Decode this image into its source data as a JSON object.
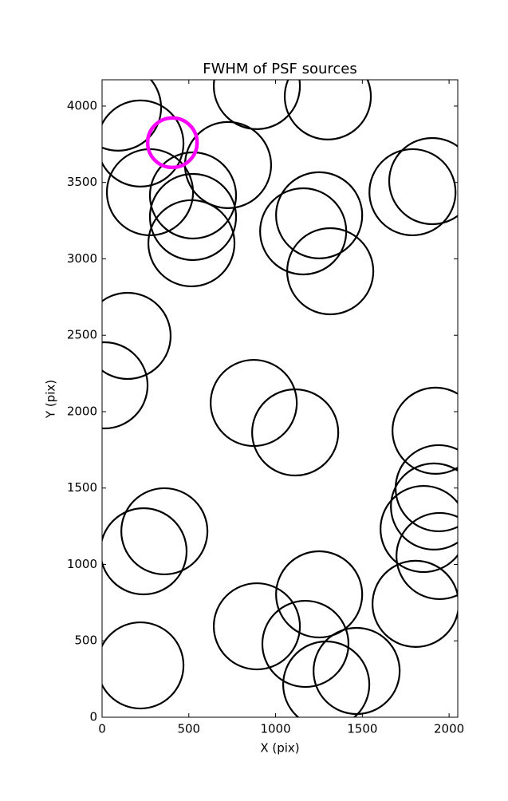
{
  "chart_data": {
    "type": "scatter",
    "title": "FWHM of PSF sources",
    "x_label": "X (pix)",
    "y_label": "Y (pix)",
    "xlim": [
      0,
      2050
    ],
    "ylim": [
      0,
      4172
    ],
    "xticks": [
      0,
      500,
      1000,
      1500,
      2000
    ],
    "yticks": [
      0,
      500,
      1000,
      1500,
      2000,
      2500,
      3000,
      3500,
      4000
    ],
    "series": [
      {
        "color": "#000000",
        "x": [
          92,
          221,
          892,
          1301,
          726,
          524,
          276,
          524,
          515,
          1251,
          1159,
          1315,
          1789,
          1903,
          147,
          14,
          874,
          1113,
          1922,
          1940,
          1913,
          1853,
          1945,
          359,
          239,
          1251,
          892,
          1172,
          1292,
          1467,
          1807,
          221
        ],
        "values": [
          3990,
          3755,
          4131,
          4063,
          3614,
          3415,
          3436,
          3274,
          3102,
          3285,
          3180,
          2919,
          3436,
          3509,
          2496,
          2172,
          2057,
          1864,
          1875,
          1499,
          1379,
          1232,
          1055,
          1217,
          1086,
          804,
          595,
          480,
          214,
          303,
          742,
          339
        ]
      },
      {
        "color": "#ff00ff",
        "x": [
          405
        ],
        "values": [
          3760
        ]
      }
    ]
  }
}
